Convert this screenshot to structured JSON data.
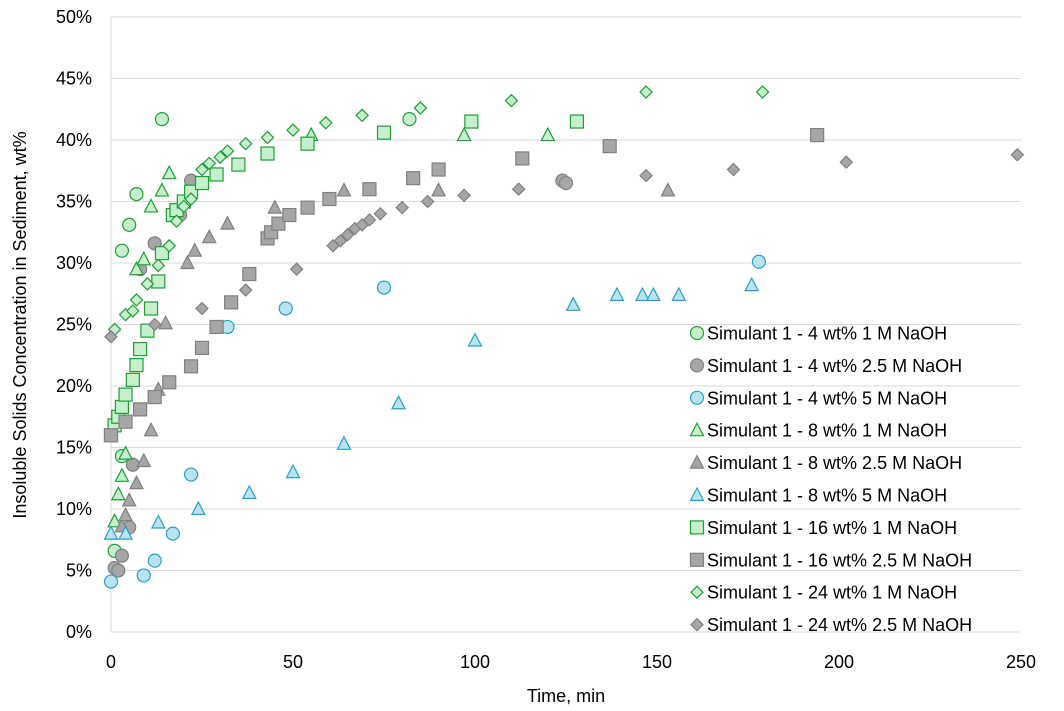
{
  "chart_data": {
    "type": "scatter",
    "title": "",
    "xlabel": "Time, min",
    "ylabel": "Insoluble Solids Concentration in Sediment, wt%",
    "xlim": [
      0,
      250
    ],
    "ylim": [
      0,
      0.5
    ],
    "xticks": [
      0,
      50,
      100,
      150,
      200,
      250
    ],
    "xtick_labels": [
      "0",
      "50",
      "100",
      "150",
      "200",
      "250"
    ],
    "yticks": [
      0,
      0.05,
      0.1,
      0.15,
      0.2,
      0.25,
      0.3,
      0.35,
      0.4,
      0.45,
      0.5
    ],
    "ytick_labels": [
      "0%",
      "5%",
      "10%",
      "15%",
      "20%",
      "25%",
      "30%",
      "35%",
      "40%",
      "45%",
      "50%"
    ],
    "grid": "horizontal",
    "legend_position": "right",
    "series": [
      {
        "name": "Simulant 1 - 4 wt% 1 M NaOH",
        "marker": "circle",
        "fill": "#C6EFCE",
        "stroke": "#1E9E34",
        "points": [
          [
            1,
            0.066
          ],
          [
            3,
            0.143
          ],
          [
            3,
            0.31
          ],
          [
            5,
            0.331
          ],
          [
            7,
            0.356
          ],
          [
            14,
            0.417
          ],
          [
            82,
            0.417
          ]
        ]
      },
      {
        "name": "Simulant 1 - 4 wt% 2.5 M NaOH",
        "marker": "circle",
        "fill": "#A6A6A6",
        "stroke": "#808080",
        "points": [
          [
            1,
            0.052
          ],
          [
            2,
            0.05
          ],
          [
            3,
            0.062
          ],
          [
            5,
            0.085
          ],
          [
            6,
            0.136
          ],
          [
            8,
            0.295
          ],
          [
            12,
            0.316
          ],
          [
            19,
            0.339
          ],
          [
            22,
            0.367
          ],
          [
            124,
            0.367
          ],
          [
            125,
            0.365
          ]
        ]
      },
      {
        "name": "Simulant 1 - 4 wt% 5 M NaOH",
        "marker": "circle",
        "fill": "#B7E4F0",
        "stroke": "#2A9FC6",
        "points": [
          [
            0,
            0.041
          ],
          [
            9,
            0.046
          ],
          [
            12,
            0.058
          ],
          [
            17,
            0.08
          ],
          [
            22,
            0.128
          ],
          [
            32,
            0.248
          ],
          [
            48,
            0.263
          ],
          [
            75,
            0.28
          ],
          [
            178,
            0.301
          ]
        ]
      },
      {
        "name": "Simulant 1 - 8 wt% 1 M NaOH",
        "marker": "triangle",
        "fill": "#C6EFCE",
        "stroke": "#1E9E34",
        "points": [
          [
            1,
            0.09
          ],
          [
            2,
            0.112
          ],
          [
            3,
            0.127
          ],
          [
            4,
            0.145
          ],
          [
            7,
            0.295
          ],
          [
            9,
            0.303
          ],
          [
            11,
            0.346
          ],
          [
            14,
            0.359
          ],
          [
            16,
            0.373
          ],
          [
            55,
            0.404
          ],
          [
            97,
            0.404
          ],
          [
            120,
            0.404
          ]
        ]
      },
      {
        "name": "Simulant 1 - 8 wt% 2.5 M NaOH",
        "marker": "triangle",
        "fill": "#A6A6A6",
        "stroke": "#808080",
        "points": [
          [
            3,
            0.086
          ],
          [
            4,
            0.095
          ],
          [
            5,
            0.107
          ],
          [
            7,
            0.121
          ],
          [
            9,
            0.139
          ],
          [
            11,
            0.164
          ],
          [
            13,
            0.197
          ],
          [
            15,
            0.251
          ],
          [
            21,
            0.3
          ],
          [
            23,
            0.31
          ],
          [
            27,
            0.321
          ],
          [
            32,
            0.332
          ],
          [
            45,
            0.345
          ],
          [
            64,
            0.359
          ],
          [
            90,
            0.359
          ],
          [
            153,
            0.359
          ]
        ]
      },
      {
        "name": "Simulant 1 - 8 wt% 5 M NaOH",
        "marker": "triangle",
        "fill": "#B7E4F0",
        "stroke": "#2A9FC6",
        "points": [
          [
            0,
            0.08
          ],
          [
            4,
            0.08
          ],
          [
            13,
            0.089
          ],
          [
            24,
            0.1
          ],
          [
            38,
            0.113
          ],
          [
            50,
            0.13
          ],
          [
            64,
            0.153
          ],
          [
            79,
            0.186
          ],
          [
            100,
            0.237
          ],
          [
            127,
            0.266
          ],
          [
            139,
            0.274
          ],
          [
            146,
            0.274
          ],
          [
            149,
            0.274
          ],
          [
            156,
            0.274
          ],
          [
            176,
            0.282
          ]
        ]
      },
      {
        "name": "Simulant 1 - 16 wt% 1 M NaOH",
        "marker": "square",
        "fill": "#C6EFCE",
        "stroke": "#1E9E34",
        "points": [
          [
            0,
            0.16
          ],
          [
            1,
            0.168
          ],
          [
            2,
            0.175
          ],
          [
            3,
            0.183
          ],
          [
            4,
            0.193
          ],
          [
            6,
            0.205
          ],
          [
            7,
            0.217
          ],
          [
            8,
            0.23
          ],
          [
            10,
            0.245
          ],
          [
            11,
            0.263
          ],
          [
            13,
            0.285
          ],
          [
            14,
            0.308
          ],
          [
            17,
            0.339
          ],
          [
            18,
            0.343
          ],
          [
            20,
            0.35
          ],
          [
            22,
            0.358
          ],
          [
            25,
            0.365
          ],
          [
            29,
            0.372
          ],
          [
            35,
            0.38
          ],
          [
            43,
            0.389
          ],
          [
            54,
            0.397
          ],
          [
            75,
            0.406
          ],
          [
            99,
            0.415
          ],
          [
            128,
            0.415
          ]
        ]
      },
      {
        "name": "Simulant 1 - 16 wt% 2.5 M NaOH",
        "marker": "square",
        "fill": "#A6A6A6",
        "stroke": "#808080",
        "points": [
          [
            0,
            0.16
          ],
          [
            4,
            0.171
          ],
          [
            8,
            0.181
          ],
          [
            12,
            0.191
          ],
          [
            16,
            0.203
          ],
          [
            22,
            0.216
          ],
          [
            25,
            0.231
          ],
          [
            29,
            0.248
          ],
          [
            33,
            0.268
          ],
          [
            38,
            0.291
          ],
          [
            43,
            0.32
          ],
          [
            44,
            0.325
          ],
          [
            46,
            0.332
          ],
          [
            49,
            0.339
          ],
          [
            54,
            0.345
          ],
          [
            60,
            0.352
          ],
          [
            71,
            0.36
          ],
          [
            83,
            0.369
          ],
          [
            90,
            0.376
          ],
          [
            113,
            0.385
          ],
          [
            137,
            0.395
          ],
          [
            194,
            0.404
          ]
        ]
      },
      {
        "name": "Simulant 1 - 24 wt% 1 M NaOH",
        "marker": "diamond",
        "fill": "#C6EFCE",
        "stroke": "#1E9E34",
        "points": [
          [
            1,
            0.246
          ],
          [
            4,
            0.258
          ],
          [
            6,
            0.261
          ],
          [
            7,
            0.27
          ],
          [
            10,
            0.283
          ],
          [
            13,
            0.298
          ],
          [
            16,
            0.314
          ],
          [
            18,
            0.334
          ],
          [
            20,
            0.346
          ],
          [
            22,
            0.352
          ],
          [
            25,
            0.376
          ],
          [
            27,
            0.381
          ],
          [
            30,
            0.386
          ],
          [
            32,
            0.391
          ],
          [
            37,
            0.397
          ],
          [
            43,
            0.402
          ],
          [
            50,
            0.408
          ],
          [
            59,
            0.414
          ],
          [
            69,
            0.42
          ],
          [
            85,
            0.426
          ],
          [
            110,
            0.432
          ],
          [
            147,
            0.439
          ],
          [
            179,
            0.439
          ]
        ]
      },
      {
        "name": "Simulant 1 - 24 wt% 2.5 M NaOH",
        "marker": "diamond",
        "fill": "#A6A6A6",
        "stroke": "#808080",
        "points": [
          [
            0,
            0.24
          ],
          [
            12,
            0.25
          ],
          [
            25,
            0.263
          ],
          [
            37,
            0.278
          ],
          [
            51,
            0.295
          ],
          [
            61,
            0.314
          ],
          [
            63,
            0.318
          ],
          [
            65,
            0.323
          ],
          [
            67,
            0.328
          ],
          [
            69,
            0.331
          ],
          [
            71,
            0.335
          ],
          [
            74,
            0.34
          ],
          [
            80,
            0.345
          ],
          [
            87,
            0.35
          ],
          [
            97,
            0.355
          ],
          [
            112,
            0.36
          ],
          [
            147,
            0.371
          ],
          [
            171,
            0.376
          ],
          [
            202,
            0.382
          ],
          [
            249,
            0.388
          ]
        ]
      }
    ]
  }
}
